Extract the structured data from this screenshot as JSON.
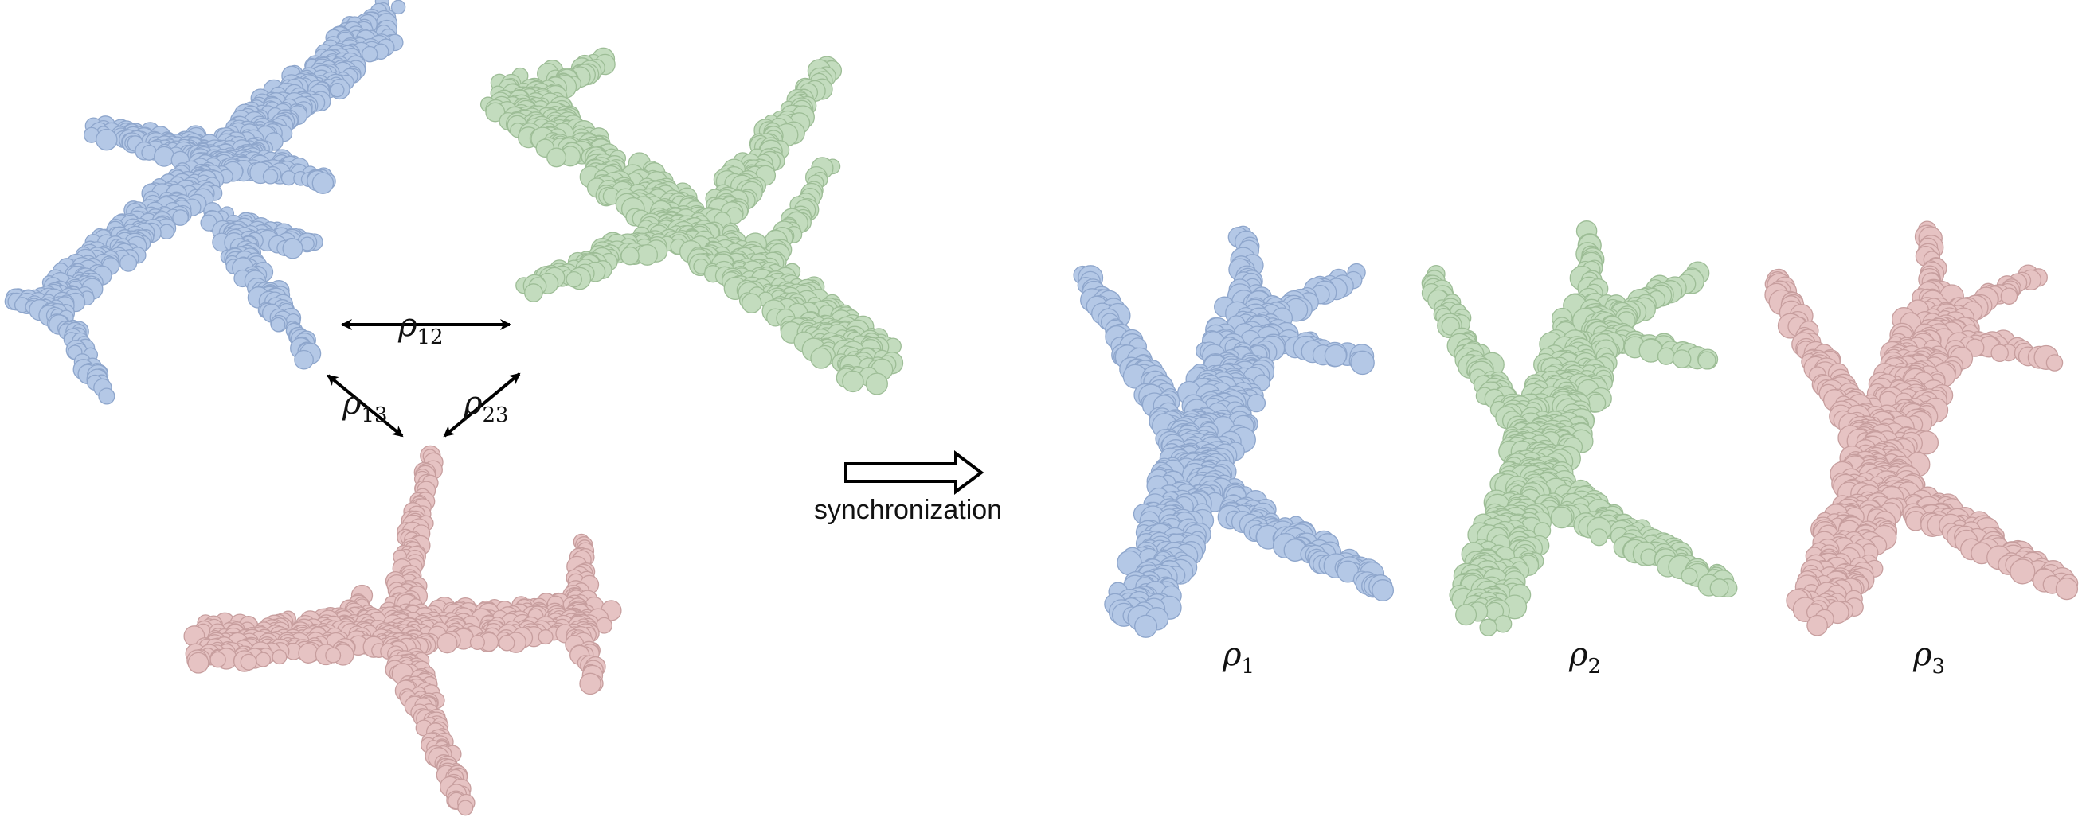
{
  "diagram": {
    "rel_labels": {
      "r12": {
        "main": "ρ",
        "sub": "12"
      },
      "r13": {
        "main": "ρ",
        "sub": "13"
      },
      "r23": {
        "main": "ρ",
        "sub": "23"
      }
    },
    "step_label": "synchronization",
    "abs_labels": [
      {
        "main": "ρ",
        "sub": "1"
      },
      {
        "main": "ρ",
        "sub": "2"
      },
      {
        "main": "ρ",
        "sub": "3"
      }
    ],
    "colors": {
      "blue": "#b4c8e6",
      "blue_dark": "#8ea6cc",
      "green": "#c3dcbe",
      "green_dark": "#9dbd96",
      "pink": "#e6c3c3",
      "pink_dark": "#c79e9e",
      "arrow": "#000000"
    },
    "shapes": [
      "airplane-point-cloud-blue",
      "airplane-point-cloud-green",
      "airplane-point-cloud-pink"
    ]
  }
}
